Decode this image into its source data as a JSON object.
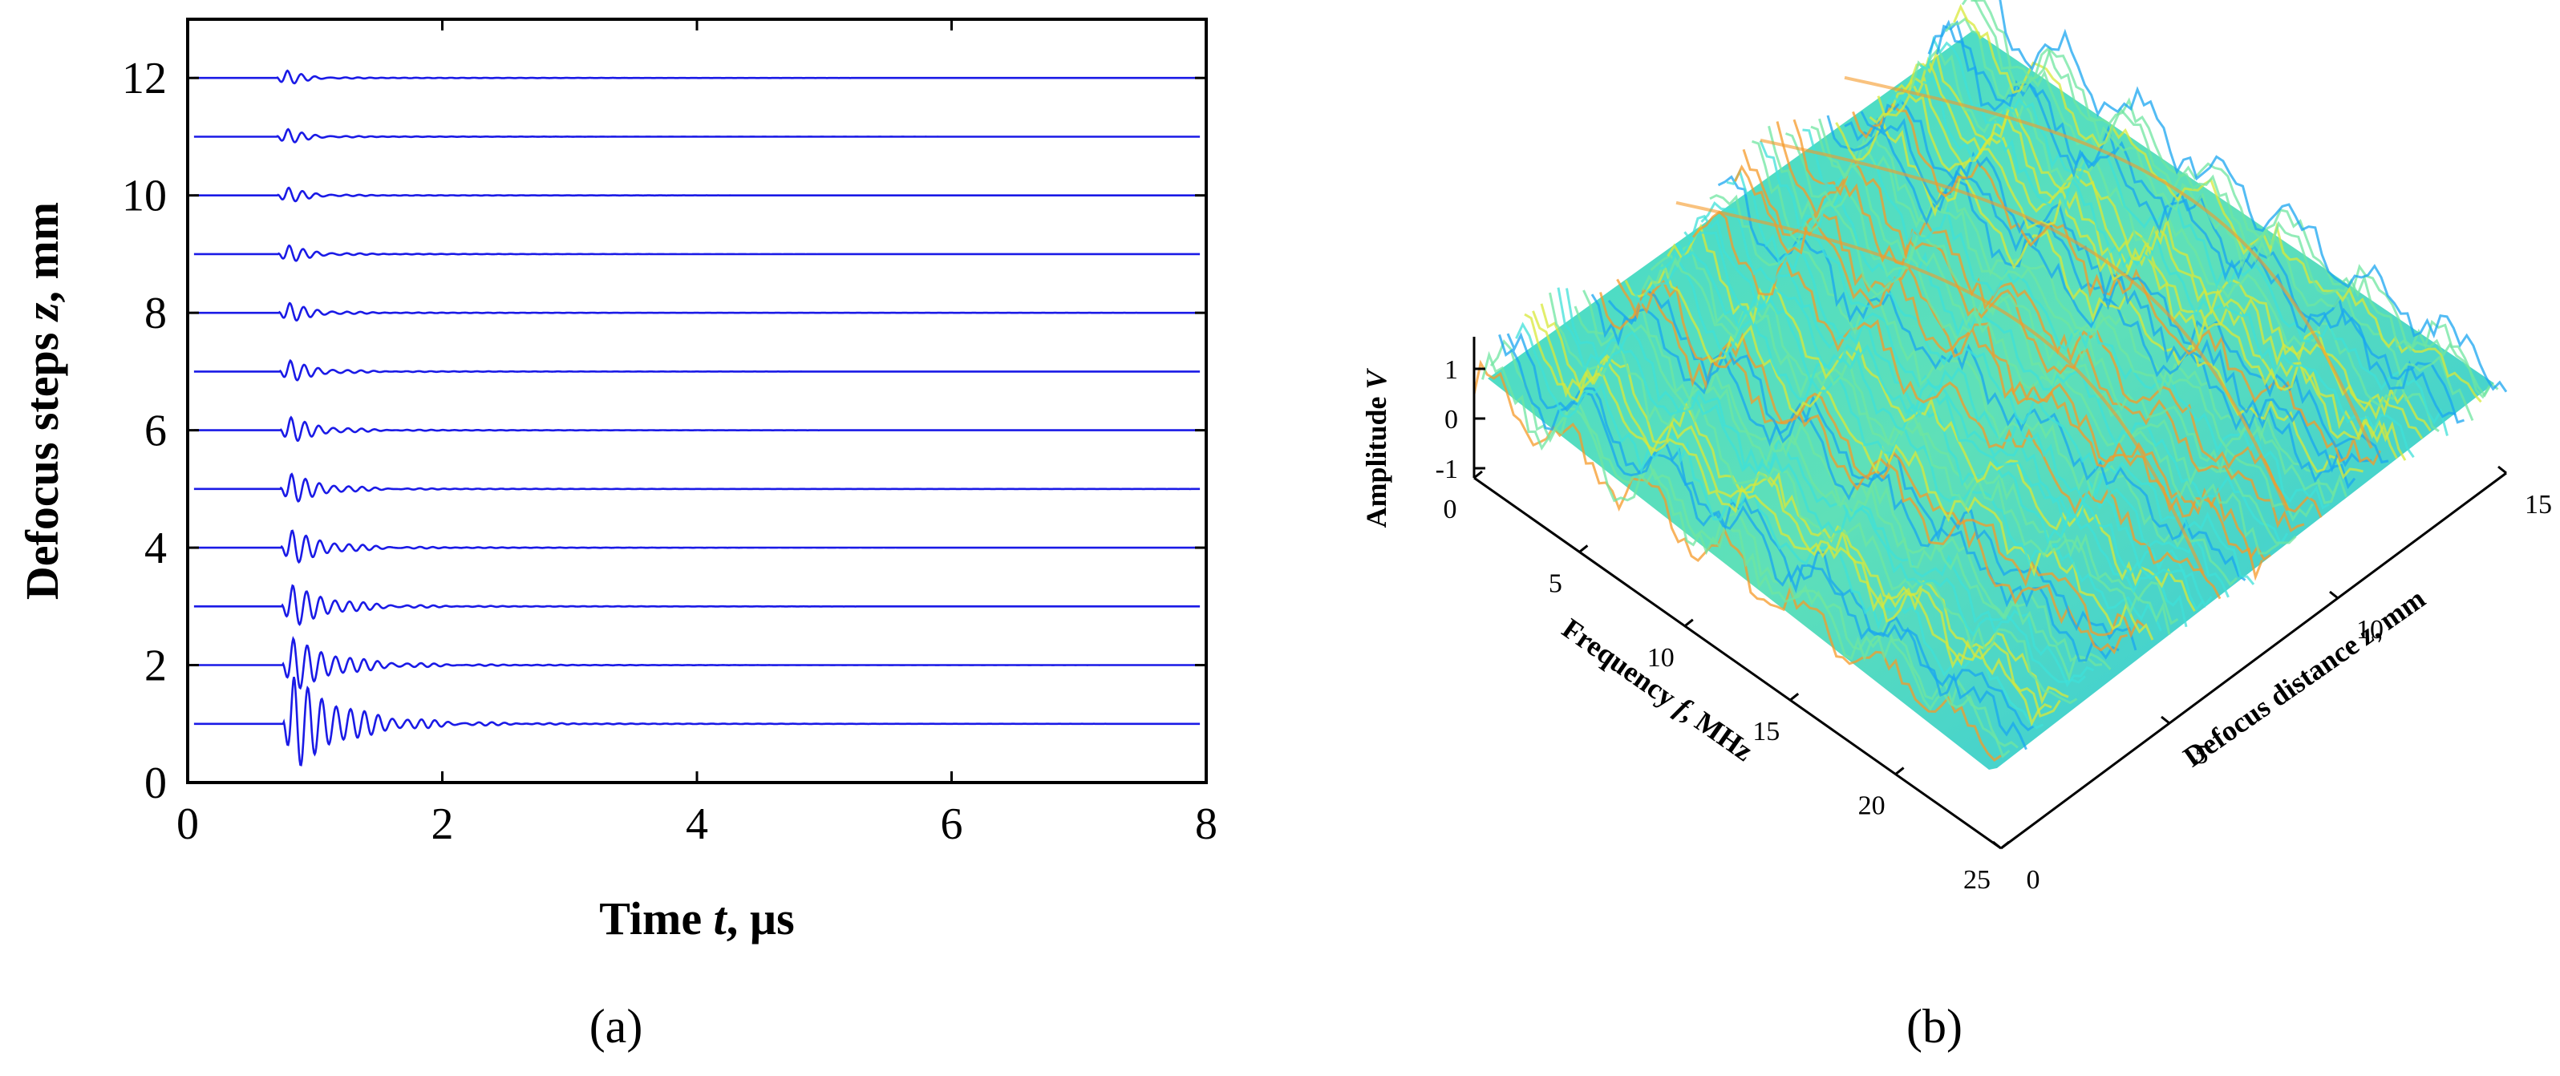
{
  "panel_labels": {
    "a": "(a)",
    "b": "(b)"
  },
  "chart_data": [
    {
      "type": "line",
      "panel": "(a)",
      "xlabel_parts": [
        "Time ",
        "t",
        ", µs"
      ],
      "ylabel_parts": [
        "Defocus steps ",
        "z",
        ", mm"
      ],
      "xlim": [
        0,
        8
      ],
      "ylim": [
        0,
        13
      ],
      "xticks": [
        0,
        2,
        4,
        6,
        8
      ],
      "yticks": [
        0,
        2,
        4,
        6,
        8,
        10,
        12
      ],
      "line_color": "#1a1ae6",
      "series": [
        {
          "offset": 1,
          "amplitude": 0.95
        },
        {
          "offset": 2,
          "amplitude": 0.55
        },
        {
          "offset": 3,
          "amplitude": 0.45
        },
        {
          "offset": 4,
          "amplitude": 0.38
        },
        {
          "offset": 5,
          "amplitude": 0.34
        },
        {
          "offset": 6,
          "amplitude": 0.3
        },
        {
          "offset": 7,
          "amplitude": 0.26
        },
        {
          "offset": 8,
          "amplitude": 0.24
        },
        {
          "offset": 9,
          "amplitude": 0.22
        },
        {
          "offset": 10,
          "amplitude": 0.2
        },
        {
          "offset": 11,
          "amplitude": 0.2
        },
        {
          "offset": 12,
          "amplitude": 0.2
        }
      ],
      "signal_start_t": 0.7,
      "signal_end_t": 2.6
    },
    {
      "type": "surface",
      "panel": "(b)",
      "zlabel_parts": [
        "Amplitude ",
        "V"
      ],
      "xlabel_parts": [
        "Frequency ",
        "f",
        ", MHz"
      ],
      "ylabel_parts": [
        "Defocus distance ",
        "z",
        ", mm"
      ],
      "zticks": [
        1,
        0,
        -1
      ],
      "xticks": [
        0,
        5,
        10,
        15,
        20,
        25
      ],
      "yticks": [
        0,
        5,
        10,
        15
      ],
      "xlim": [
        0,
        25
      ],
      "ylim": [
        0,
        15
      ],
      "zlim": [
        -1,
        1
      ],
      "colormap": [
        "#0a2ad6",
        "#1aa6f0",
        "#3fe0d8",
        "#6fe6a0",
        "#d8e83a",
        "#f59a28",
        "#d62418"
      ]
    }
  ]
}
